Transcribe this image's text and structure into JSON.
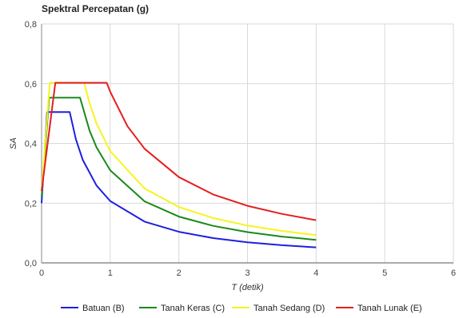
{
  "chart_data": {
    "type": "line",
    "title": "Spektral Percepatan (g)",
    "xlabel": "T (detik)",
    "ylabel": "SA",
    "xlim": [
      0,
      6
    ],
    "ylim": [
      0,
      0.8
    ],
    "x_ticks": [
      "0",
      "1",
      "2",
      "3",
      "4",
      "5",
      "6"
    ],
    "y_ticks": [
      "0,0",
      "0,2",
      "0,4",
      "0,6",
      "0,8"
    ],
    "grid": true,
    "legend_position": "bottom",
    "series": [
      {
        "name": "Batuan (B)",
        "color": "#1f1fdf",
        "points": [
          [
            0,
            0.2
          ],
          [
            0.08,
            0.505
          ],
          [
            0.41,
            0.505
          ],
          [
            0.5,
            0.414
          ],
          [
            0.6,
            0.345
          ],
          [
            0.8,
            0.259
          ],
          [
            1.0,
            0.207
          ],
          [
            1.5,
            0.138
          ],
          [
            2.0,
            0.104
          ],
          [
            2.5,
            0.083
          ],
          [
            3.0,
            0.069
          ],
          [
            3.5,
            0.059
          ],
          [
            4.0,
            0.052
          ]
        ]
      },
      {
        "name": "Tanah Keras (C)",
        "color": "#1a8a1a",
        "points": [
          [
            0,
            0.22
          ],
          [
            0.11,
            0.553
          ],
          [
            0.56,
            0.553
          ],
          [
            0.7,
            0.442
          ],
          [
            0.8,
            0.387
          ],
          [
            1.0,
            0.31
          ],
          [
            1.5,
            0.206
          ],
          [
            2.0,
            0.155
          ],
          [
            2.5,
            0.124
          ],
          [
            3.0,
            0.103
          ],
          [
            3.5,
            0.088
          ],
          [
            4.0,
            0.077
          ]
        ]
      },
      {
        "name": "Tanah Sedang (D)",
        "color": "#f5f51e",
        "points": [
          [
            0,
            0.24
          ],
          [
            0.12,
            0.603
          ],
          [
            0.62,
            0.603
          ],
          [
            0.7,
            0.534
          ],
          [
            0.8,
            0.467
          ],
          [
            1.0,
            0.374
          ],
          [
            1.5,
            0.249
          ],
          [
            2.0,
            0.187
          ],
          [
            2.5,
            0.15
          ],
          [
            3.0,
            0.125
          ],
          [
            3.5,
            0.107
          ],
          [
            4.0,
            0.093
          ]
        ]
      },
      {
        "name": "Tanah Lunak (E)",
        "color": "#e61e1e",
        "points": [
          [
            0,
            0.24
          ],
          [
            0.2,
            0.603
          ],
          [
            0.95,
            0.603
          ],
          [
            1.0,
            0.573
          ],
          [
            1.25,
            0.458
          ],
          [
            1.5,
            0.382
          ],
          [
            2.0,
            0.287
          ],
          [
            2.5,
            0.229
          ],
          [
            3.0,
            0.191
          ],
          [
            3.5,
            0.164
          ],
          [
            4.0,
            0.143
          ]
        ]
      }
    ]
  }
}
